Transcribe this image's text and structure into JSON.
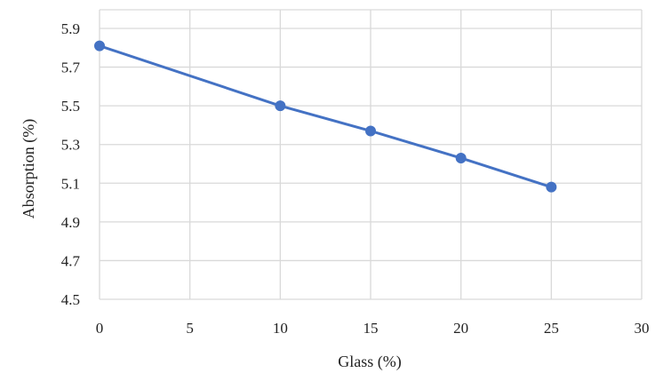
{
  "chart_data": {
    "type": "line",
    "title": "",
    "xlabel": "Glass (%)",
    "ylabel": "Absorption (%)",
    "xlim": [
      0,
      30
    ],
    "ylim": [
      4.5,
      6.0
    ],
    "x_ticks": [
      "0",
      "5",
      "10",
      "15",
      "20",
      "25",
      "30"
    ],
    "y_ticks": [
      "4.5",
      "4.7",
      "4.9",
      "5.1",
      "5.3",
      "5.5",
      "5.7",
      "5.9"
    ],
    "grid": true,
    "legend": "none",
    "series": [
      {
        "color": "#4472c4",
        "x": [
          0,
          10,
          15,
          20,
          25
        ],
        "y": [
          5.81,
          5.5,
          5.37,
          5.23,
          5.08
        ]
      }
    ]
  }
}
